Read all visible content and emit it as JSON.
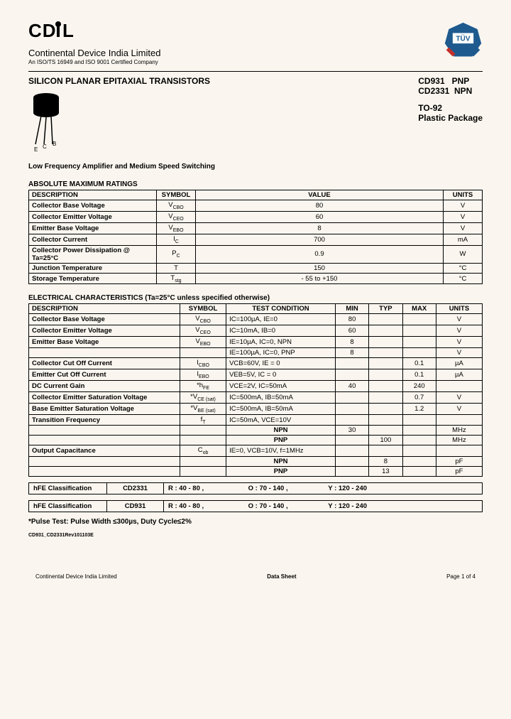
{
  "header": {
    "logo": "CDIL",
    "company": "Continental Device India Limited",
    "cert": "An ISO/TS 16949 and ISO 9001  Certified Company"
  },
  "title": {
    "main": "SILICON PLANAR EPITAXIAL TRANSISTORS",
    "part1": "CD931",
    "type1": "PNP",
    "part2": "CD2331",
    "type2": "NPN",
    "pkg1": "TO-92",
    "pkg2": "Plastic Package",
    "pin_e": "E",
    "pin_c": "C",
    "pin_b": "B"
  },
  "subhead": "Low Frequency Amplifier and Medium Speed Switching",
  "amr": {
    "title": "ABSOLUTE MAXIMUM RATINGS",
    "cols": {
      "desc": "DESCRIPTION",
      "sym": "SYMBOL",
      "val": "VALUE",
      "unit": "UNITS"
    },
    "rows": [
      {
        "desc": "Collector Base Voltage",
        "sym": "V",
        "sub": "CBO",
        "val": "80",
        "unit": "V"
      },
      {
        "desc": "Collector Emitter Voltage",
        "sym": "V",
        "sub": "CEO",
        "val": "60",
        "unit": "V"
      },
      {
        "desc": "Emitter Base Voltage",
        "sym": "V",
        "sub": "EBO",
        "val": "8",
        "unit": "V"
      },
      {
        "desc": "Collector Current",
        "sym": "I",
        "sub": "C",
        "val": "700",
        "unit": "mA"
      },
      {
        "desc": "Collector Power Dissipation @ Ta=25°C",
        "sym": "P",
        "sub": "C",
        "val": "0.9",
        "unit": "W"
      },
      {
        "desc": "Junction Temperature",
        "sym": "T",
        "sub": "",
        "val": "150",
        "unit": "°C"
      },
      {
        "desc": "Storage Temperature",
        "sym": "T",
        "sub": "stg",
        "val": "- 55 to +150",
        "unit": "°C"
      }
    ]
  },
  "elec": {
    "title": "ELECTRICAL CHARACTERISTICS (Ta=25°C unless specified otherwise)",
    "cols": {
      "desc": "DESCRIPTION",
      "sym": "SYMBOL",
      "tc": "TEST CONDITION",
      "min": "MIN",
      "typ": "TYP",
      "max": "MAX",
      "unit": "UNITS"
    },
    "rows": [
      {
        "desc": "Collector Base Voltage",
        "sym": "V",
        "sub": "CBO",
        "tc": "IC=100µA, IE=0",
        "min": "80",
        "typ": "",
        "max": "",
        "unit": "V"
      },
      {
        "desc": "Collector Emitter Voltage",
        "sym": "V",
        "sub": "CEO",
        "tc": "IC=10mA, IB=0",
        "min": "60",
        "typ": "",
        "max": "",
        "unit": "V"
      },
      {
        "desc": "Emitter Base Voltage",
        "sym": "V",
        "sub": "EBO",
        "tc": "IE=10µA, IC=0,   NPN",
        "min": "8",
        "typ": "",
        "max": "",
        "unit": "V"
      },
      {
        "desc": "",
        "sym": "",
        "sub": "",
        "tc": "IE=100µA, IC=0,   PNP",
        "min": "8",
        "typ": "",
        "max": "",
        "unit": "V"
      },
      {
        "desc": "Collector Cut Off Current",
        "sym": "I",
        "sub": "CBO",
        "tc": "VCB=60V, IE = 0",
        "min": "",
        "typ": "",
        "max": "0.1",
        "unit": "µA"
      },
      {
        "desc": "Emitter Cut Off Current",
        "sym": "I",
        "sub": "EBO",
        "tc": "VEB=5V, IC = 0",
        "min": "",
        "typ": "",
        "max": "0.1",
        "unit": "µA"
      },
      {
        "desc": "DC Current Gain",
        "sym": "*h",
        "sub": "FE",
        "tc": "VCE=2V, IC=50mA",
        "min": "40",
        "typ": "",
        "max": "240",
        "unit": ""
      },
      {
        "desc": "Collector Emitter Saturation Voltage",
        "sym": "*V",
        "sub": "CE (sat)",
        "tc": "IC=500mA, IB=50mA",
        "min": "",
        "typ": "",
        "max": "0.7",
        "unit": "V"
      },
      {
        "desc": "Base Emitter Saturation Voltage",
        "sym": "*V",
        "sub": "BE (sat)",
        "tc": "IC=500mA, IB=50mA",
        "min": "",
        "typ": "",
        "max": "1.2",
        "unit": "V"
      },
      {
        "desc": "Transition Frequency",
        "sym": "f",
        "sub": "T",
        "tc": "IC=50mA, VCE=10V",
        "min": "",
        "typ": "",
        "max": "",
        "unit": ""
      },
      {
        "desc": "",
        "sym": "",
        "sub": "",
        "tc": "NPN",
        "min": "30",
        "typ": "",
        "max": "",
        "unit": "MHz"
      },
      {
        "desc": "",
        "sym": "",
        "sub": "",
        "tc": "PNP",
        "min": "",
        "typ": "100",
        "max": "",
        "unit": "MHz"
      },
      {
        "desc": "Output Capacitance",
        "sym": "C",
        "sub": "ob",
        "tc": "IE=0, VCB=10V, f=1MHz",
        "min": "",
        "typ": "",
        "max": "",
        "unit": ""
      },
      {
        "desc": "",
        "sym": "",
        "sub": "",
        "tc": "NPN",
        "min": "",
        "typ": "8",
        "max": "",
        "unit": "pF"
      },
      {
        "desc": "",
        "sym": "",
        "sub": "",
        "tc": "PNP",
        "min": "",
        "typ": "13",
        "max": "",
        "unit": "pF"
      }
    ]
  },
  "hfe": [
    {
      "label": "hFE Classification",
      "part": "CD2331",
      "r": "R : 40 - 80 ,",
      "o": "O : 70 - 140 ,",
      "y": "Y : 120 - 240"
    },
    {
      "label": "hFE Classification",
      "part": "CD931",
      "r": "R : 40 - 80 ,",
      "o": "O : 70 - 140 ,",
      "y": "Y : 120 - 240"
    }
  ],
  "note": "*Pulse Test: Pulse Width ≤300µs, Duty Cycle≤2%",
  "rev": "CD931_CD2331Rev101103E",
  "footer": {
    "left": "Continental Device India Limited",
    "center": "Data Sheet",
    "right": "Page 1 of 4"
  },
  "colors": {
    "bg": "#faf6ef",
    "tuv_blue": "#1e5a8e",
    "tuv_red": "#c4302b"
  }
}
